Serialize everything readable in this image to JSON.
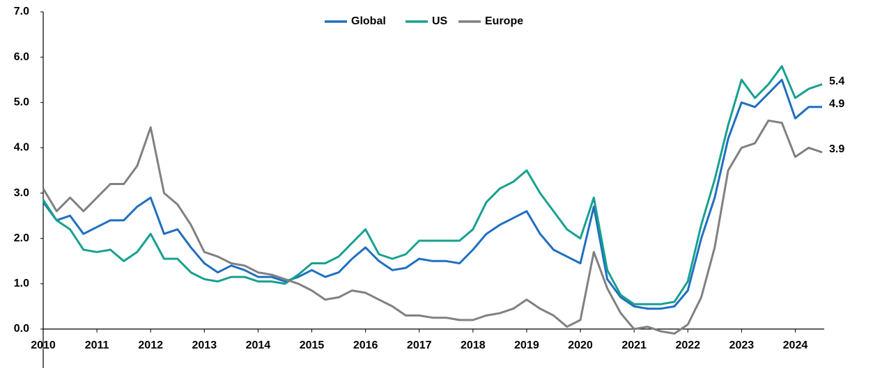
{
  "chart_data": {
    "type": "line",
    "x": [
      2010,
      2010.25,
      2010.5,
      2010.75,
      2011,
      2011.25,
      2011.5,
      2011.75,
      2012,
      2012.25,
      2012.5,
      2012.75,
      2013,
      2013.25,
      2013.5,
      2013.75,
      2014,
      2014.25,
      2014.5,
      2014.75,
      2015,
      2015.25,
      2015.5,
      2015.75,
      2016,
      2016.25,
      2016.5,
      2016.75,
      2017,
      2017.25,
      2017.5,
      2017.75,
      2018,
      2018.25,
      2018.5,
      2018.75,
      2019,
      2019.25,
      2019.5,
      2019.75,
      2020,
      2020.25,
      2020.5,
      2020.75,
      2021,
      2021.25,
      2021.5,
      2021.75,
      2022,
      2022.25,
      2022.5,
      2022.75,
      2023,
      2023.25,
      2023.5,
      2023.75,
      2024,
      2024.25,
      2024.5
    ],
    "series": [
      {
        "name": "Global",
        "color": "#1f6fc0",
        "values": [
          2.8,
          2.4,
          2.5,
          2.1,
          2.25,
          2.4,
          2.4,
          2.7,
          2.9,
          2.1,
          2.2,
          1.8,
          1.45,
          1.25,
          1.4,
          1.3,
          1.15,
          1.15,
          1.05,
          1.15,
          1.3,
          1.15,
          1.25,
          1.55,
          1.8,
          1.5,
          1.3,
          1.35,
          1.55,
          1.5,
          1.5,
          1.45,
          1.75,
          2.1,
          2.3,
          2.45,
          2.6,
          2.1,
          1.75,
          1.6,
          1.45,
          2.7,
          1.1,
          0.7,
          0.5,
          0.45,
          0.45,
          0.5,
          0.85,
          2.0,
          2.9,
          4.2,
          5.0,
          4.9,
          5.2,
          5.5,
          4.65,
          4.9,
          4.9
        ]
      },
      {
        "name": "US",
        "color": "#17a08f",
        "values": [
          2.85,
          2.4,
          2.2,
          1.75,
          1.7,
          1.75,
          1.5,
          1.7,
          2.1,
          1.55,
          1.55,
          1.25,
          1.1,
          1.05,
          1.15,
          1.15,
          1.05,
          1.05,
          1.0,
          1.2,
          1.45,
          1.45,
          1.6,
          1.9,
          2.2,
          1.65,
          1.55,
          1.65,
          1.95,
          1.95,
          1.95,
          1.95,
          2.2,
          2.8,
          3.1,
          3.25,
          3.5,
          3.0,
          2.6,
          2.2,
          2.0,
          2.9,
          1.3,
          0.75,
          0.55,
          0.55,
          0.55,
          0.6,
          1.05,
          2.3,
          3.3,
          4.5,
          5.5,
          5.1,
          5.4,
          5.8,
          5.1,
          5.3,
          5.4
        ]
      },
      {
        "name": "Europe",
        "color": "#808080",
        "values": [
          3.1,
          2.6,
          2.9,
          2.6,
          2.9,
          3.2,
          3.2,
          3.6,
          4.45,
          3.0,
          2.75,
          2.3,
          1.7,
          1.6,
          1.45,
          1.4,
          1.25,
          1.2,
          1.1,
          1.0,
          0.85,
          0.65,
          0.7,
          0.85,
          0.8,
          0.65,
          0.5,
          0.3,
          0.3,
          0.25,
          0.25,
          0.2,
          0.2,
          0.3,
          0.35,
          0.45,
          0.65,
          0.45,
          0.3,
          0.05,
          0.2,
          1.7,
          0.9,
          0.35,
          0.0,
          0.05,
          -0.05,
          -0.1,
          0.1,
          0.7,
          1.8,
          3.5,
          4.0,
          4.1,
          4.6,
          4.55,
          3.8,
          4.0,
          3.9
        ]
      }
    ],
    "xlim": [
      2010,
      2024.5
    ],
    "xticks": [
      2010,
      2011,
      2012,
      2013,
      2014,
      2015,
      2016,
      2017,
      2018,
      2019,
      2020,
      2021,
      2022,
      2023,
      2024
    ],
    "ylim": [
      0,
      7
    ],
    "yticks": [
      {
        "value": 0,
        "label": "0.0"
      },
      {
        "value": 1,
        "label": "1.0"
      },
      {
        "value": 2,
        "label": "2.0"
      },
      {
        "value": 3,
        "label": "3.0"
      },
      {
        "value": 4,
        "label": "4.0"
      },
      {
        "value": 5,
        "label": "5.0"
      },
      {
        "value": 6,
        "label": "6.0"
      },
      {
        "value": 7,
        "label": "7.0"
      }
    ],
    "grid": false,
    "legend": "top"
  }
}
